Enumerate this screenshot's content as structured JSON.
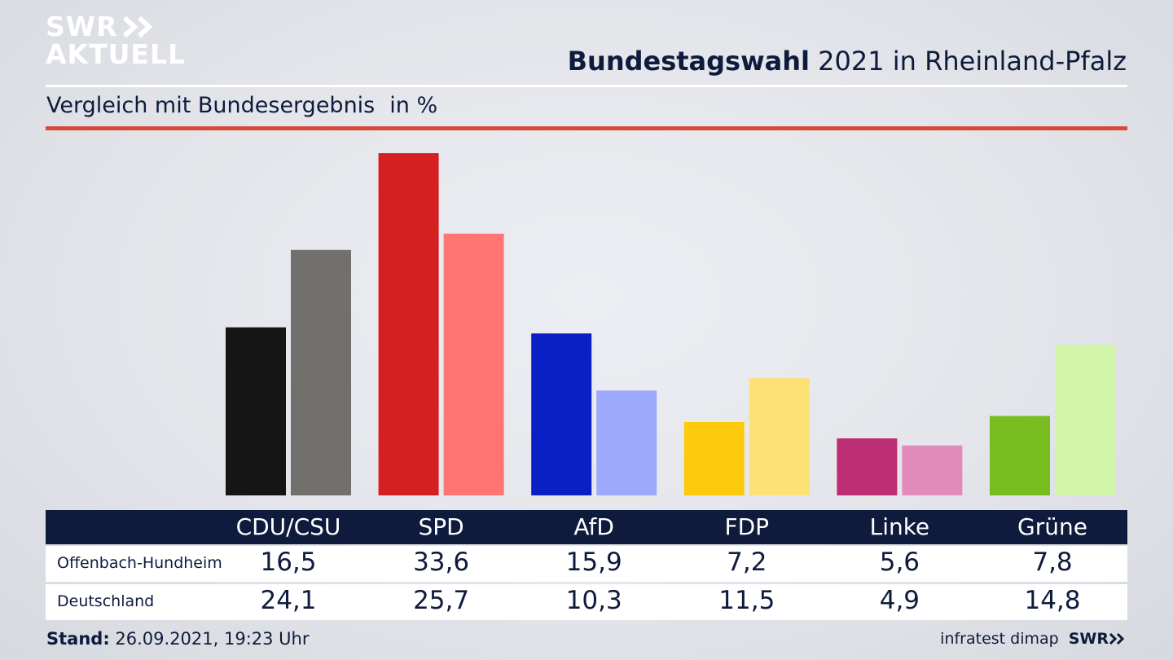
{
  "brand": {
    "line1": "SWR",
    "line2": "AKTUELL",
    "footer_brand": "SWR"
  },
  "header": {
    "title_bold": "Bundestagswahl",
    "title_rest": " 2021 in Rheinland-Pfalz",
    "subtitle": "Vergleich mit Bundesergebnis",
    "unit": "in %"
  },
  "chart_data": {
    "type": "bar",
    "title": "Bundestagswahl 2021 in Rheinland-Pfalz",
    "subtitle": "Vergleich mit Bundesergebnis",
    "ylabel": "in %",
    "ylim": [
      0,
      35
    ],
    "grid": false,
    "legend": "table-below",
    "categories": [
      "CDU/CSU",
      "SPD",
      "AfD",
      "FDP",
      "Linke",
      "Grüne"
    ],
    "series": [
      {
        "name": "Offenbach-Hundheim",
        "values": [
          16.5,
          33.6,
          15.9,
          7.2,
          5.6,
          7.8
        ],
        "labels": [
          "16,5",
          "33,6",
          "15,9",
          "7,2",
          "5,6",
          "7,8"
        ],
        "colors": [
          "#151515",
          "#d42020",
          "#0a1fc6",
          "#fdca0c",
          "#bd2d73",
          "#78bd1f"
        ]
      },
      {
        "name": "Deutschland",
        "values": [
          24.1,
          25.7,
          10.3,
          11.5,
          4.9,
          14.8
        ],
        "labels": [
          "24,1",
          "25,7",
          "10,3",
          "11,5",
          "4,9",
          "14,8"
        ],
        "colors": [
          "#72706d",
          "#ff7571",
          "#9ca9fd",
          "#fde176",
          "#e18bbb",
          "#d2f5a9"
        ]
      }
    ]
  },
  "footer": {
    "stand_label": "Stand:",
    "stand_value": " 26.09.2021, 19:23 Uhr",
    "source": "infratest dimap"
  }
}
